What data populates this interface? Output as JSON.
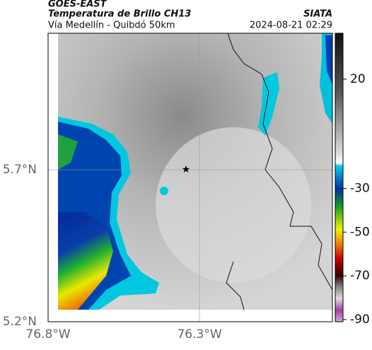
{
  "header": {
    "source": "GOES-EAST",
    "title": "Temperatura de Brillo CH13",
    "subtitle": "Vía Medellín - Quibdó 50km",
    "agency": "SIATA",
    "timestamp": "2024-08-21 02:29"
  },
  "map": {
    "xlim": [
      -76.8,
      -75.861
    ],
    "ylim": [
      5.2,
      6.149
    ],
    "xticks": [
      {
        "value": -76.8,
        "label": "76.8°W"
      },
      {
        "value": -76.3,
        "label": "76.3°W"
      }
    ],
    "yticks": [
      {
        "value": 5.7,
        "label": "5.7°N"
      },
      {
        "value": 5.2,
        "label": "5.2°N"
      }
    ]
  },
  "colorbar": {
    "lim": [
      41,
      -91
    ],
    "ticks": [
      20,
      -30,
      -50,
      -70,
      -90
    ]
  }
}
